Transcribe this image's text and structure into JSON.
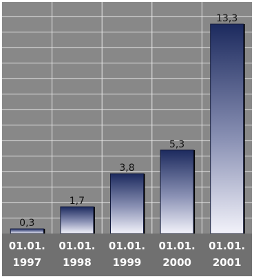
{
  "chart_data": {
    "type": "bar",
    "categories": [
      [
        "01.01.",
        "1997"
      ],
      [
        "01.01.",
        "1998"
      ],
      [
        "01.01.",
        "1999"
      ],
      [
        "01.01.",
        "2000"
      ],
      [
        "01.01.",
        "2001"
      ]
    ],
    "values": [
      0.3,
      1.7,
      3.8,
      5.3,
      13.3
    ],
    "value_labels": [
      "0,3",
      "1,7",
      "3,8",
      "5,3",
      "13,3"
    ],
    "ylim": [
      0,
      14
    ],
    "grid": true,
    "colors": {
      "plot_background": "#888888",
      "gridline": "#e9e9e9",
      "bar_top": "#1c2a5e",
      "bar_bottom": "#f2f2fa",
      "axis_band": "#707070",
      "tick_text": "#ffffff"
    }
  }
}
